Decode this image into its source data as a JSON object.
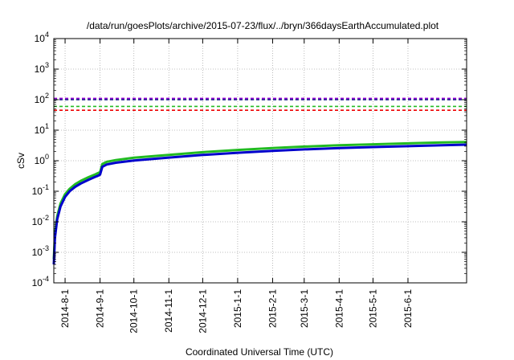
{
  "chart_data": {
    "type": "line",
    "title": "/data/run/goesPlots/archive/2015-07-23/flux/../bryn/366daysEarthAccumulated.plot",
    "xlabel": "Coordinated Universal Time (UTC)",
    "ylabel": "cSv",
    "yscale": "log",
    "ylim": [
      0.0001,
      10000
    ],
    "xlim": [
      "2014-07-22",
      "2015-07-23"
    ],
    "grid": true,
    "legend": "none",
    "y_ticks": [
      {
        "base": "10",
        "exp": "-4"
      },
      {
        "base": "10",
        "exp": "-3"
      },
      {
        "base": "10",
        "exp": "-2"
      },
      {
        "base": "10",
        "exp": "-1"
      },
      {
        "base": "10",
        "exp": "0"
      },
      {
        "base": "10",
        "exp": "1"
      },
      {
        "base": "10",
        "exp": "2"
      },
      {
        "base": "10",
        "exp": "3"
      },
      {
        "base": "10",
        "exp": "4"
      }
    ],
    "x_ticks": [
      "2014-8-1",
      "2014-9-1",
      "2014-10-1",
      "2014-11-1",
      "2014-12-1",
      "2015-1-1",
      "2015-2-1",
      "2015-3-1",
      "2015-4-1",
      "2015-5-1",
      "2015-6-1"
    ],
    "reference_lines": [
      {
        "value": 110,
        "color": "#9400d3",
        "style": "dashed"
      },
      {
        "value": 100,
        "color": "#000080",
        "style": "dashed"
      },
      {
        "value": 60,
        "color": "#22bb22",
        "style": "dashed"
      },
      {
        "value": 45,
        "color": "#ee0000",
        "style": "dashed"
      }
    ],
    "series": [
      {
        "color": "#22bb22",
        "x": [
          "2014-07-22",
          "2014-07-23",
          "2014-07-25",
          "2014-07-28",
          "2014-08-01",
          "2014-08-05",
          "2014-08-10",
          "2014-08-15",
          "2014-08-22",
          "2014-08-28",
          "2014-08-30",
          "2014-09-01",
          "2014-09-03",
          "2014-09-07",
          "2014-09-15",
          "2014-10-01",
          "2014-11-01",
          "2014-12-01",
          "2015-01-01",
          "2015-02-01",
          "2015-03-01",
          "2015-04-01",
          "2015-05-01",
          "2015-06-01",
          "2015-07-01",
          "2015-07-23"
        ],
        "y": [
          0.0006,
          0.004,
          0.015,
          0.04,
          0.08,
          0.12,
          0.17,
          0.22,
          0.29,
          0.36,
          0.39,
          0.42,
          0.78,
          0.92,
          1.05,
          1.25,
          1.55,
          1.9,
          2.25,
          2.6,
          2.9,
          3.2,
          3.45,
          3.7,
          3.95,
          4.1
        ]
      },
      {
        "color": "#0000cc",
        "x": [
          "2014-07-22",
          "2014-07-23",
          "2014-07-25",
          "2014-07-28",
          "2014-08-01",
          "2014-08-05",
          "2014-08-10",
          "2014-08-15",
          "2014-08-22",
          "2014-08-28",
          "2014-08-30",
          "2014-09-01",
          "2014-09-03",
          "2014-09-07",
          "2014-09-15",
          "2014-10-01",
          "2014-11-01",
          "2014-12-01",
          "2015-01-01",
          "2015-02-01",
          "2015-03-01",
          "2015-04-01",
          "2015-05-01",
          "2015-06-01",
          "2015-07-01",
          "2015-07-23"
        ],
        "y": [
          0.0004,
          0.003,
          0.012,
          0.032,
          0.065,
          0.1,
          0.14,
          0.18,
          0.24,
          0.3,
          0.32,
          0.35,
          0.63,
          0.75,
          0.86,
          1.02,
          1.27,
          1.55,
          1.82,
          2.1,
          2.35,
          2.6,
          2.8,
          3.0,
          3.2,
          3.35
        ]
      }
    ]
  }
}
